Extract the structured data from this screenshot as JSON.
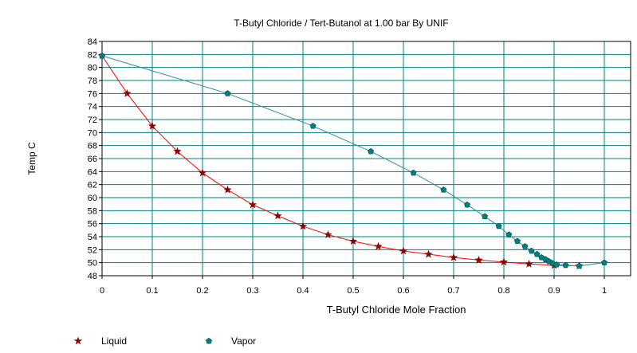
{
  "chart_data": {
    "type": "scatter",
    "title": "T-Butyl Chloride / Tert-Butanol at    1.00 bar By UNIF",
    "xlabel": "T-Butyl Chloride Mole Fraction",
    "ylabel": "Temp C",
    "xlim": [
      0,
      1
    ],
    "ylim": [
      48,
      84
    ],
    "xticks": [
      "0",
      "0.1",
      "0.2",
      "0.3",
      "0.4",
      "0.5",
      "0.6",
      "0.7",
      "0.8",
      "0.9",
      "1"
    ],
    "yticks": [
      "48",
      "50",
      "52",
      "54",
      "56",
      "58",
      "60",
      "62",
      "64",
      "66",
      "68",
      "70",
      "72",
      "74",
      "76",
      "78",
      "80",
      "82",
      "84"
    ],
    "grid": true,
    "legend_position": "bottom",
    "series": [
      {
        "name": "Liquid",
        "marker": "star",
        "color": "#8b0000",
        "line_color": "#ff0000",
        "x": [
          0,
          0.05,
          0.1,
          0.15,
          0.2,
          0.25,
          0.3,
          0.35,
          0.4,
          0.45,
          0.5,
          0.55,
          0.6,
          0.65,
          0.7,
          0.75,
          0.8,
          0.85,
          0.9,
          0.95
        ],
        "y": [
          81.8,
          76.0,
          71.0,
          67.1,
          63.8,
          61.2,
          58.9,
          57.2,
          55.6,
          54.3,
          53.3,
          52.5,
          51.8,
          51.3,
          50.8,
          50.4,
          50.1,
          49.8,
          49.6,
          49.5
        ]
      },
      {
        "name": "Vapor",
        "marker": "pentagon",
        "color": "#008080",
        "line_color": "#2a8fa0",
        "x": [
          0,
          0.25,
          0.42,
          0.535,
          0.62,
          0.68,
          0.727,
          0.762,
          0.79,
          0.81,
          0.827,
          0.842,
          0.855,
          0.866,
          0.875,
          0.883,
          0.89,
          0.897,
          0.905,
          0.923,
          0.95,
          1.0
        ],
        "y": [
          81.8,
          76.0,
          71.0,
          67.1,
          63.8,
          61.2,
          58.9,
          57.1,
          55.6,
          54.3,
          53.3,
          52.5,
          51.8,
          51.3,
          50.8,
          50.5,
          50.2,
          49.9,
          49.7,
          49.6,
          49.5,
          50.0
        ]
      }
    ]
  },
  "colors": {
    "grid": "#008080",
    "frame": "#000000",
    "tick_label": "#000000"
  }
}
